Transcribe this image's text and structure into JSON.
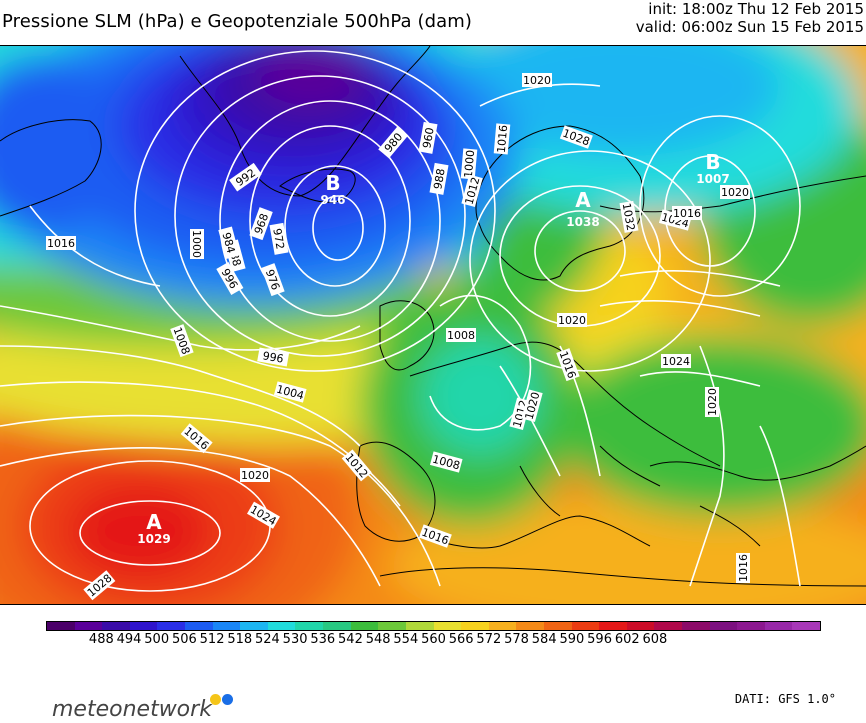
{
  "header": {
    "title": "Pressione SLM (hPa) e Geopotenziale 500hPa (dam)",
    "init": "init: 18:00z Thu 12 Feb 2015",
    "valid": "valid: 06:00z Sun 15 Feb 2015"
  },
  "map": {
    "pressure_centers": [
      {
        "type": "A",
        "value": "1029"
      },
      {
        "type": "B",
        "value": "946"
      },
      {
        "type": "A",
        "value": "1038"
      },
      {
        "type": "B",
        "value": "1007"
      }
    ],
    "isobar_labels": [
      "1028",
      "1024",
      "1020",
      "1016",
      "1012",
      "1008",
      "1004",
      "996",
      "988",
      "976",
      "972",
      "984",
      "992",
      "968",
      "1000",
      "1016",
      "996",
      "988",
      "980",
      "960",
      "1000",
      "1008",
      "1012",
      "1016",
      "1020",
      "1028",
      "1032",
      "1024",
      "1020",
      "1016",
      "1020",
      "1024",
      "1020",
      "1016",
      "1012",
      "1008",
      "1016",
      "1020",
      "1016"
    ],
    "isobar_line_color": "#ffffff",
    "coastline_color": "#000000"
  },
  "colorbar": {
    "tick_labels": [
      "488",
      "494",
      "500",
      "506",
      "512",
      "518",
      "524",
      "530",
      "536",
      "542",
      "548",
      "554",
      "560",
      "566",
      "572",
      "578",
      "584",
      "590",
      "596",
      "602",
      "608"
    ],
    "colors": [
      "#4b0069",
      "#5a009a",
      "#3a0ca8",
      "#2f14cc",
      "#2a2ee6",
      "#1c5cf2",
      "#1a86f6",
      "#1cb6f2",
      "#20dcdc",
      "#20d6aa",
      "#28c882",
      "#3cbd3c",
      "#6cc83a",
      "#b0d83a",
      "#e8e030",
      "#f6d21e",
      "#f6b01e",
      "#f48a18",
      "#f06414",
      "#ec3c12",
      "#e41818",
      "#cc0c28",
      "#b0084a",
      "#8c0a68",
      "#7c1080",
      "#8c1890",
      "#9828a8",
      "#a838b8"
    ],
    "unit": "dam"
  },
  "footer": {
    "logo": "meteonetwork",
    "credits": "DATI: GFS 1.0°",
    "logo_colors": [
      "#f5c518",
      "#1a6ee6"
    ]
  }
}
